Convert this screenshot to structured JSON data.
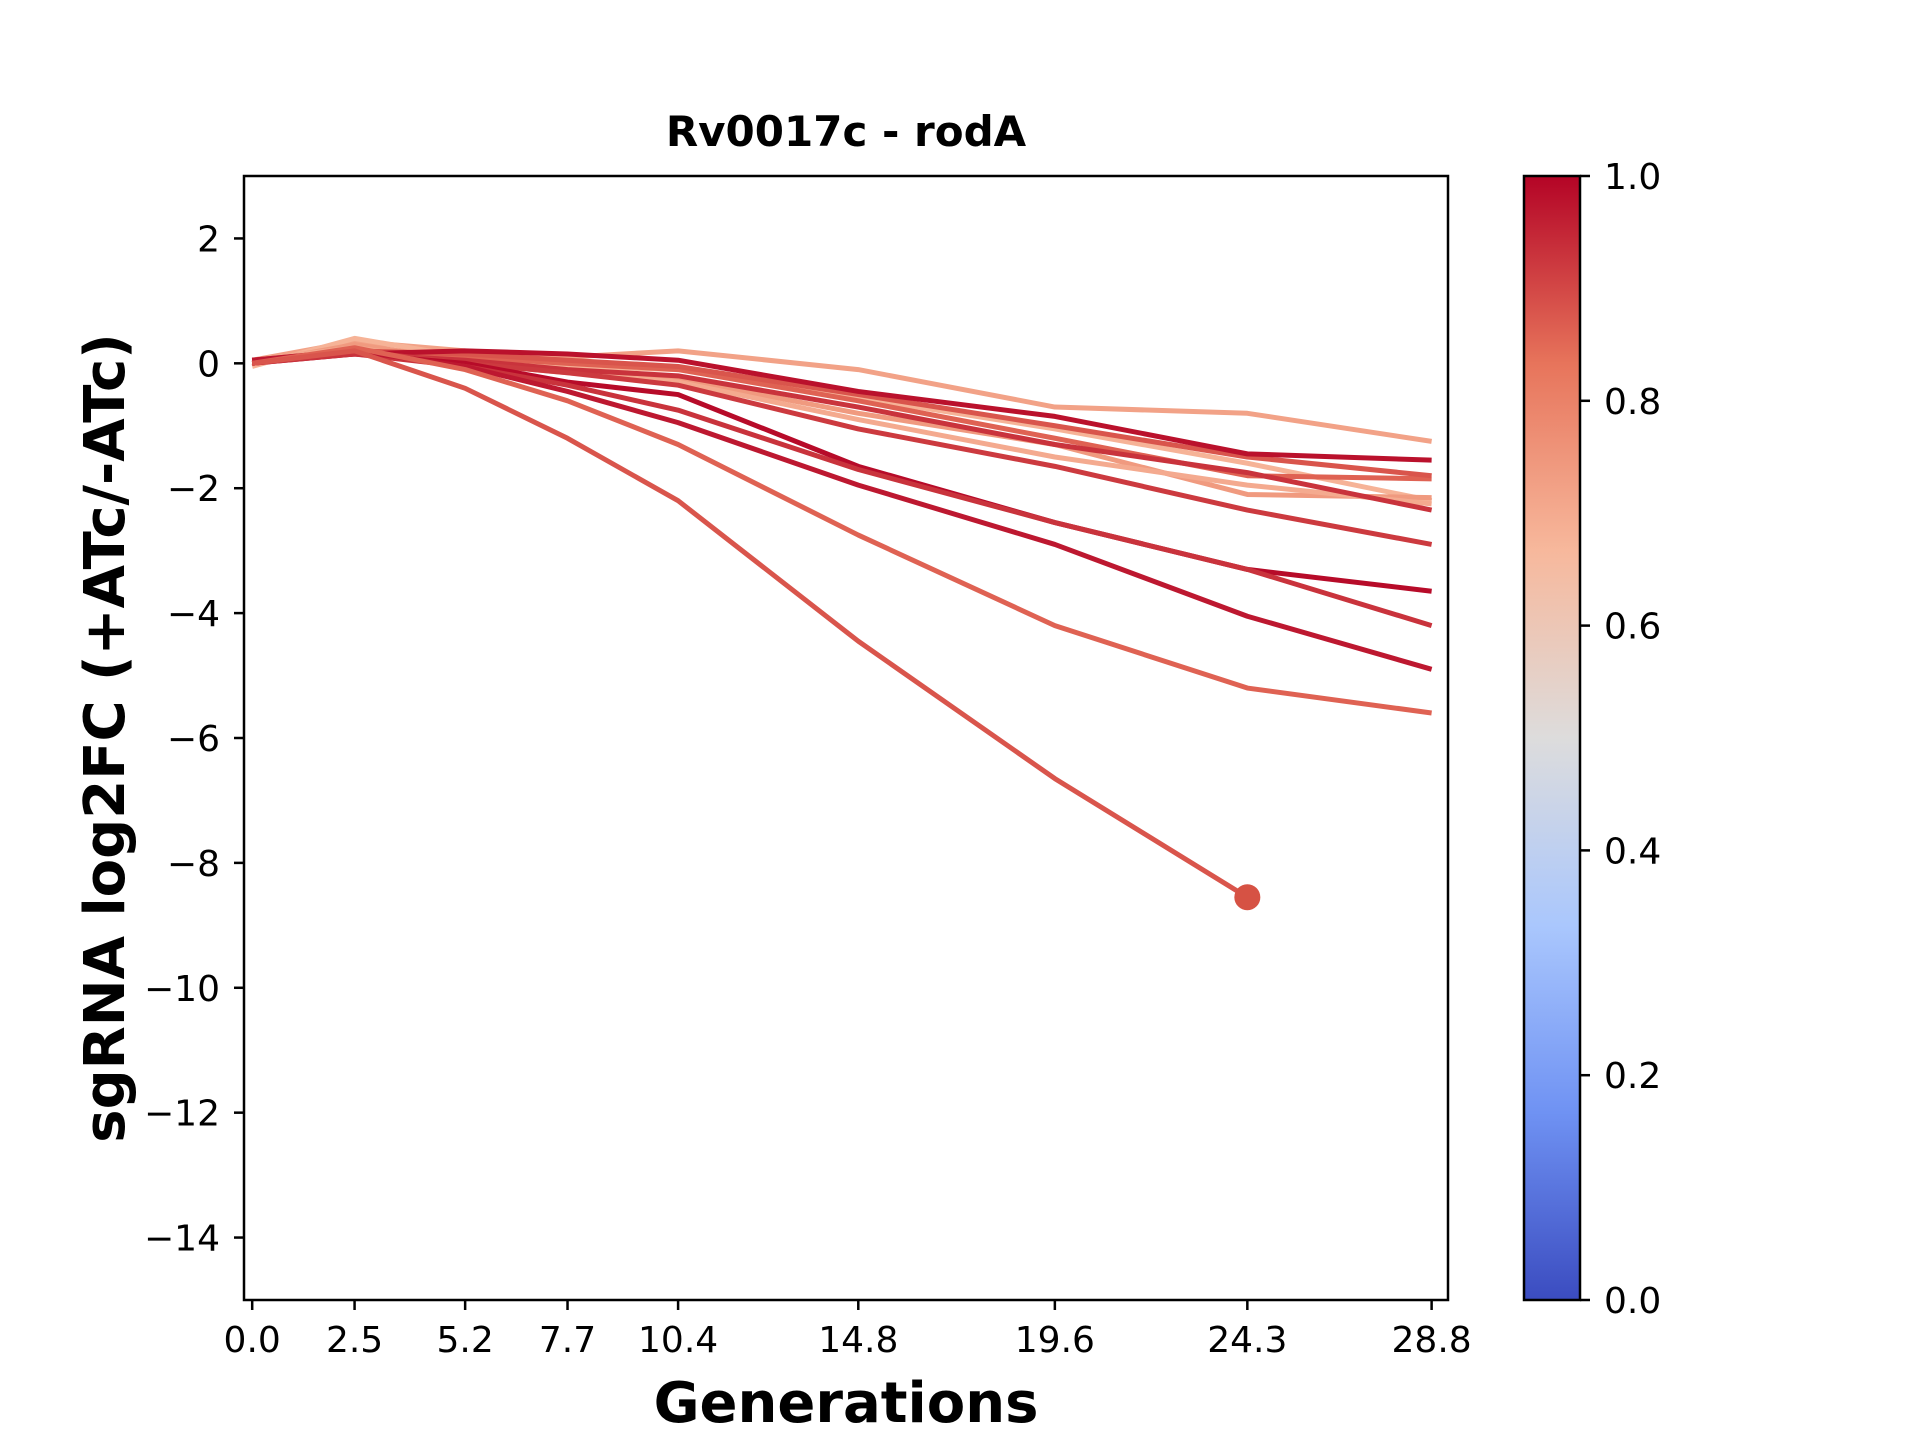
{
  "chart_data": {
    "type": "line",
    "title": "Rv0017c - rodA",
    "xlabel": "Generations",
    "ylabel": "sgRNA log2FC (+ATc/-ATc)",
    "xlim": [
      -0.2,
      29.2
    ],
    "ylim": [
      -15,
      3
    ],
    "x": [
      0.0,
      2.5,
      5.2,
      7.7,
      10.4,
      14.8,
      19.6,
      24.3,
      28.8
    ],
    "x_tick_labels": [
      "0.0",
      "2.5",
      "5.2",
      "7.7",
      "10.4",
      "14.8",
      "19.6",
      "24.3",
      "28.8"
    ],
    "y_ticks": [
      2,
      0,
      -2,
      -4,
      -6,
      -8,
      -10,
      -12,
      -14
    ],
    "y_tick_labels": [
      "2",
      "0",
      "−2",
      "−4",
      "−6",
      "−8",
      "−10",
      "−12",
      "−14"
    ],
    "grid": false,
    "legend": "none",
    "series": [
      {
        "color_value": 0.72,
        "values": [
          0.05,
          0.35,
          0.2,
          0.1,
          0.2,
          -0.1,
          -0.7,
          -0.8,
          -1.25
        ]
      },
      {
        "color_value": 0.68,
        "values": [
          -0.05,
          0.4,
          0.1,
          -0.05,
          -0.1,
          -0.55,
          -1.05,
          -1.6,
          -2.2
        ]
      },
      {
        "color_value": 0.74,
        "values": [
          0.0,
          0.3,
          0.05,
          -0.1,
          -0.25,
          -0.8,
          -1.3,
          -2.1,
          -2.15
        ]
      },
      {
        "color_value": 0.7,
        "values": [
          0.05,
          0.25,
          0.0,
          -0.15,
          -0.3,
          -0.9,
          -1.5,
          -1.95,
          -2.25
        ]
      },
      {
        "color_value": 0.86,
        "values": [
          0.0,
          0.2,
          0.1,
          0.0,
          -0.1,
          -0.6,
          -1.2,
          -1.8,
          -1.85
        ]
      },
      {
        "color_value": 0.88,
        "values": [
          0.05,
          0.2,
          0.15,
          0.05,
          -0.05,
          -0.5,
          -1.0,
          -1.5,
          -1.8
        ]
      },
      {
        "color_value": 0.98,
        "values": [
          0.0,
          0.15,
          0.2,
          0.15,
          0.05,
          -0.45,
          -0.85,
          -1.45,
          -1.55
        ]
      },
      {
        "color_value": 0.93,
        "values": [
          0.05,
          0.15,
          0.05,
          -0.1,
          -0.2,
          -0.7,
          -1.3,
          -1.75,
          -2.35
        ]
      },
      {
        "color_value": 0.92,
        "values": [
          0.0,
          0.2,
          0.0,
          -0.15,
          -0.35,
          -1.05,
          -1.65,
          -2.35,
          -2.9
        ]
      },
      {
        "color_value": 0.99,
        "values": [
          0.05,
          0.15,
          0.0,
          -0.3,
          -0.5,
          -1.65,
          -2.55,
          -3.3,
          -3.65
        ]
      },
      {
        "color_value": 0.93,
        "values": [
          0.0,
          0.15,
          -0.05,
          -0.35,
          -0.75,
          -1.7,
          -2.55,
          -3.3,
          -4.2
        ]
      },
      {
        "color_value": 0.97,
        "values": [
          0.05,
          0.2,
          -0.05,
          -0.45,
          -0.95,
          -1.95,
          -2.9,
          -4.05,
          -4.9
        ]
      },
      {
        "color_value": 0.86,
        "values": [
          0.0,
          0.25,
          -0.1,
          -0.6,
          -1.3,
          -2.75,
          -4.2,
          -5.2,
          -5.6
        ]
      },
      {
        "color_value": 0.88,
        "values": [
          0.0,
          0.2,
          -0.4,
          -1.2,
          -2.2,
          -4.45,
          -6.65,
          -8.55,
          null
        ]
      }
    ],
    "colorbar": {
      "colormap": "coolwarm",
      "range": [
        0.0,
        1.0
      ],
      "ticks": [
        "0.0",
        "0.2",
        "0.4",
        "0.6",
        "0.8",
        "1.0"
      ],
      "stops": [
        "#3b4cc0",
        "#6f92f3",
        "#aac7fd",
        "#dddcdc",
        "#f7b89c",
        "#e7745b",
        "#b40426"
      ]
    },
    "colors": {
      "point_marker": "#d65244"
    }
  }
}
